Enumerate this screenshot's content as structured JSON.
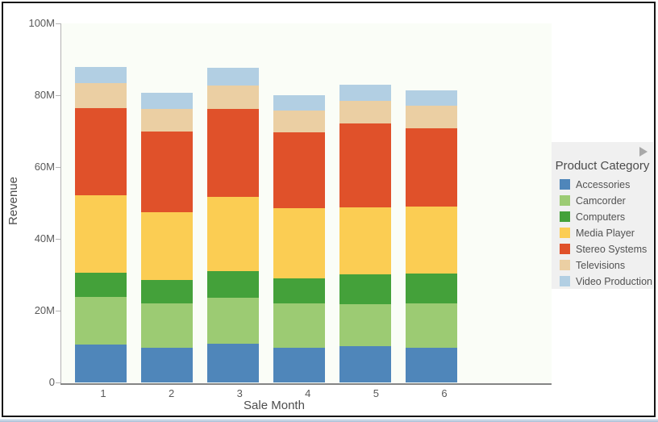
{
  "window": {
    "background": "#ffffff",
    "border_color": "#161616",
    "bottom_edge_color": "#a9bed6"
  },
  "chart_data": {
    "type": "bar",
    "stacked": true,
    "orientation": "vertical",
    "title": "",
    "xlabel": "Sale Month",
    "ylabel": "Revenue",
    "categories": [
      "1",
      "2",
      "3",
      "4",
      "5",
      "6"
    ],
    "y_ticks": [
      "0",
      "20M",
      "40M",
      "60M",
      "80M",
      "100M"
    ],
    "ylim": [
      0,
      100
    ],
    "values_unit": "millions",
    "grid": false,
    "plot_background": "#fafdf7",
    "legend_position": "right",
    "legend_title": "Product Category",
    "series": [
      {
        "name": "Accessories",
        "color": "#4f86ba",
        "values": [
          10.6,
          9.7,
          10.8,
          9.7,
          10.1,
          9.7
        ]
      },
      {
        "name": "Camcorder",
        "color": "#9ccb73",
        "values": [
          13.2,
          12.3,
          12.8,
          12.3,
          11.7,
          12.3
        ]
      },
      {
        "name": "Computers",
        "color": "#44a13a",
        "values": [
          6.8,
          6.5,
          7.4,
          7.0,
          8.3,
          8.3
        ]
      },
      {
        "name": "Media Player",
        "color": "#fbcd53",
        "values": [
          21.5,
          18.9,
          20.7,
          19.5,
          18.7,
          18.7
        ]
      },
      {
        "name": "Stereo Systems",
        "color": "#e0512a",
        "values": [
          24.3,
          22.5,
          24.5,
          21.2,
          23.3,
          21.8
        ]
      },
      {
        "name": "Televisions",
        "color": "#ebcfa3",
        "values": [
          7.0,
          6.3,
          6.5,
          6.0,
          6.3,
          6.3
        ]
      },
      {
        "name": "Video Production",
        "color": "#b2cfe3",
        "values": [
          4.5,
          4.5,
          4.9,
          4.3,
          4.5,
          4.2
        ]
      }
    ],
    "totals": [
      87.9,
      80.7,
      87.6,
      80.0,
      82.9,
      81.3
    ]
  },
  "legend": {
    "title": "Product Category",
    "expander_icon": "right-arrow",
    "background": "#f0f0f0"
  }
}
